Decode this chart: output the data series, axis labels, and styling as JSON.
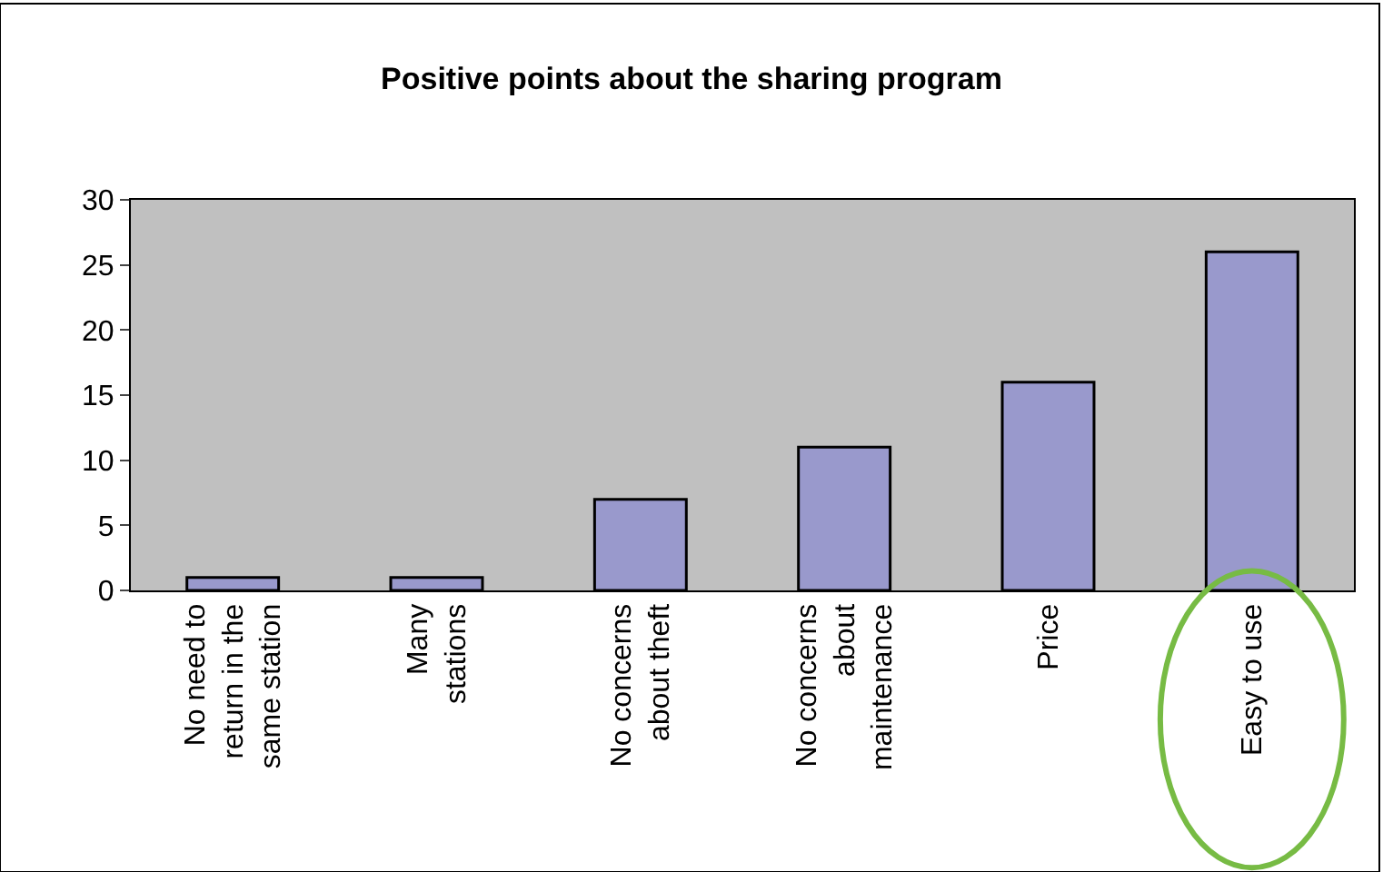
{
  "chart_data": {
    "type": "bar",
    "title": "Positive points about the sharing program",
    "categories": [
      "No need to\nreturn in the\nsame station",
      "Many\nstations",
      "No concerns\nabout theft",
      "No concerns\nabout\nmaintenance",
      "Price",
      "Easy to use"
    ],
    "values": [
      1,
      1,
      7,
      11,
      16,
      26
    ],
    "color": "#9999cc",
    "ylim": [
      0,
      30
    ],
    "yticks": [
      0,
      5,
      10,
      15,
      20,
      25,
      30
    ]
  }
}
